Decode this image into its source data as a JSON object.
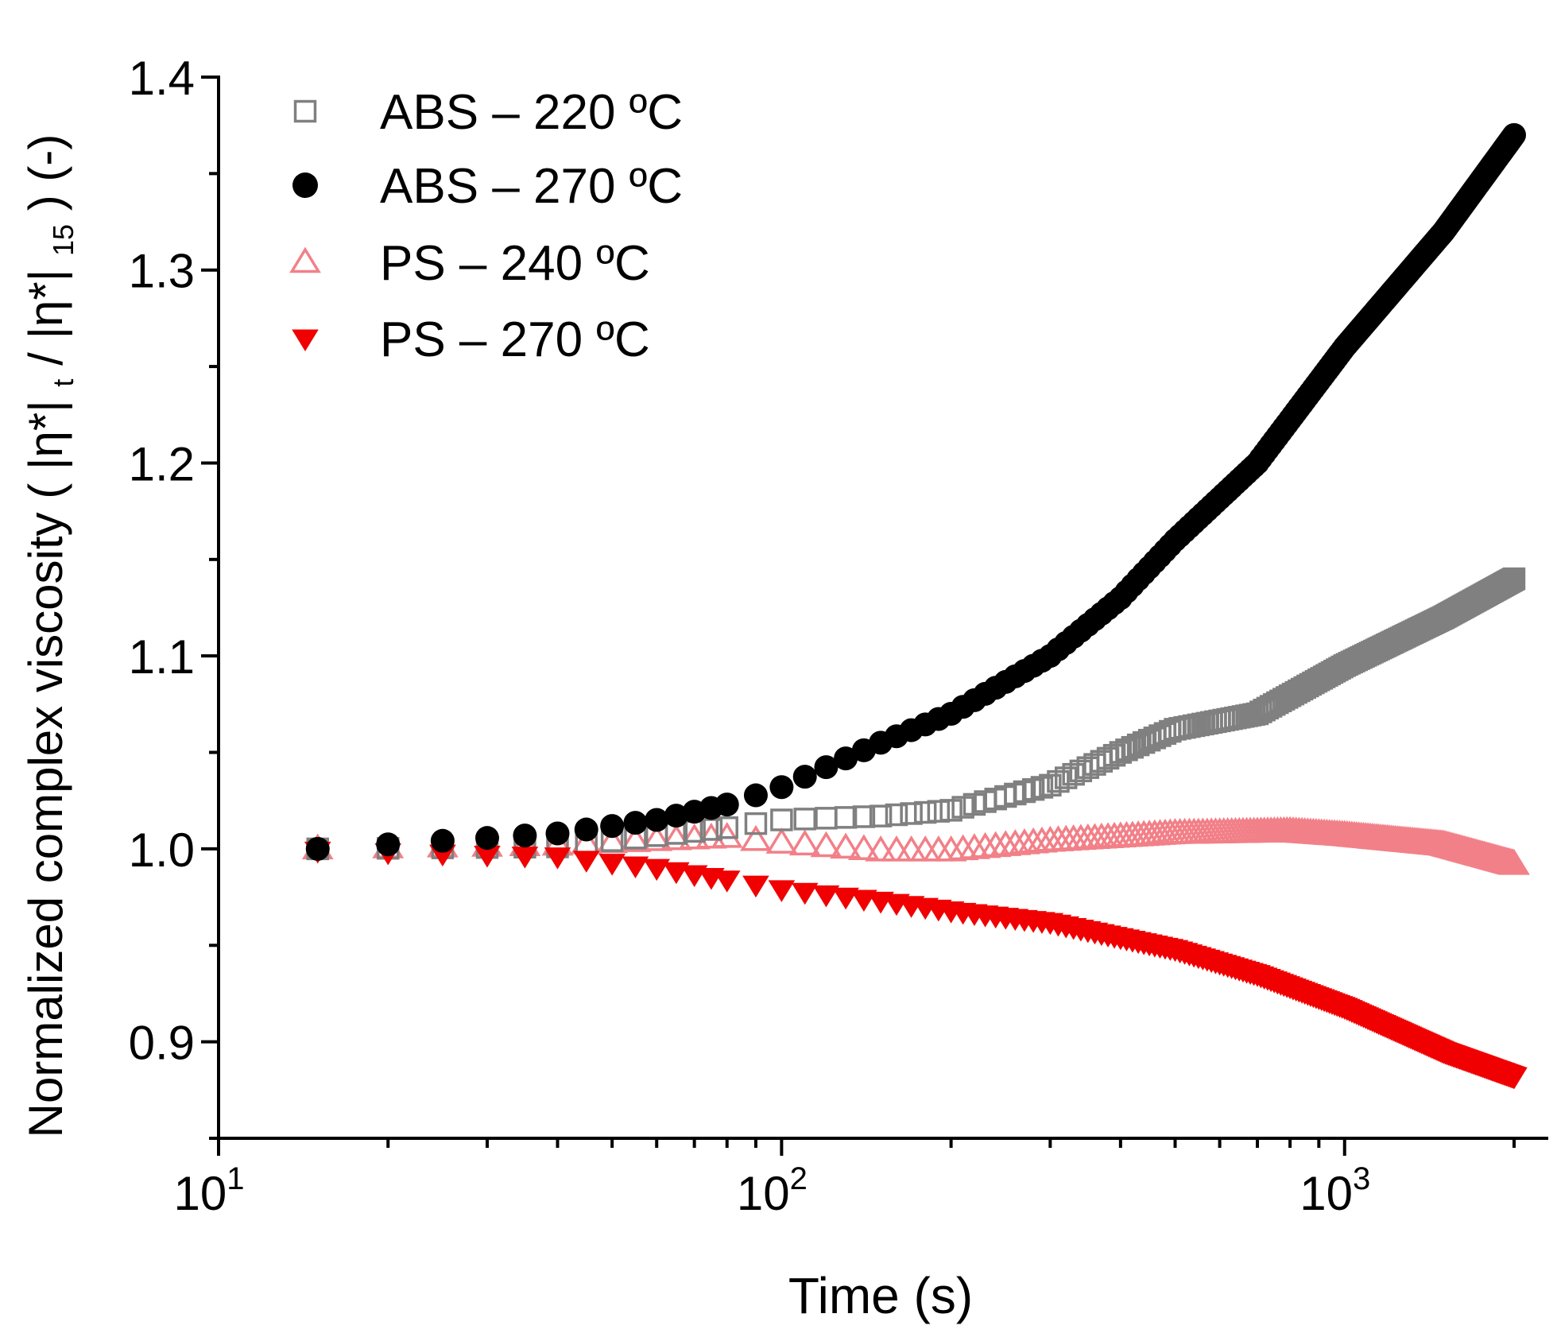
{
  "chart_data": {
    "type": "scatter",
    "xscale": "log",
    "xlim": [
      10,
      2300
    ],
    "ylim": [
      0.85,
      1.4
    ],
    "xlabel": "Time (s)",
    "ylabel": {
      "main": "Normalized complex viscosity (",
      "eta": "|η*|",
      "sub_t": "t",
      "slash": "/",
      "sub_15": "15",
      "tail": ") (-)"
    },
    "x_ticks": [
      {
        "value": 10,
        "base": "10",
        "exp": "1"
      },
      {
        "value": 100,
        "base": "10",
        "exp": "2"
      },
      {
        "value": 1000,
        "base": "10",
        "exp": "3"
      }
    ],
    "y_ticks": [
      {
        "value": 0.9,
        "label": "0.9"
      },
      {
        "value": 1.0,
        "label": "1.0"
      },
      {
        "value": 1.1,
        "label": "1.1"
      },
      {
        "value": 1.2,
        "label": "1.2"
      },
      {
        "value": 1.3,
        "label": "1.3"
      },
      {
        "value": 1.4,
        "label": "1.4"
      }
    ],
    "legend_position": "top-left",
    "series": [
      {
        "name": "ABS – 220 ºC",
        "marker": "square-open",
        "color": "#808080",
        "anchors": [
          [
            15,
            1.0
          ],
          [
            40,
            1.001
          ],
          [
            80,
            1.011
          ],
          [
            100,
            1.015
          ],
          [
            150,
            1.017
          ],
          [
            200,
            1.02
          ],
          [
            300,
            1.033
          ],
          [
            400,
            1.05
          ],
          [
            500,
            1.062
          ],
          [
            700,
            1.07
          ],
          [
            1000,
            1.095
          ],
          [
            1500,
            1.12
          ],
          [
            2000,
            1.14
          ]
        ]
      },
      {
        "name": "ABS – 270 ºC",
        "marker": "circle-filled",
        "color": "#000000",
        "anchors": [
          [
            15,
            1.0
          ],
          [
            40,
            1.008
          ],
          [
            60,
            1.015
          ],
          [
            80,
            1.023
          ],
          [
            100,
            1.032
          ],
          [
            150,
            1.055
          ],
          [
            200,
            1.07
          ],
          [
            300,
            1.1
          ],
          [
            400,
            1.13
          ],
          [
            500,
            1.16
          ],
          [
            700,
            1.2
          ],
          [
            1000,
            1.26
          ],
          [
            1500,
            1.32
          ],
          [
            2000,
            1.37
          ]
        ]
      },
      {
        "name": "PS – 240 ºC",
        "marker": "triangle-up-open",
        "color": "#f28088",
        "anchors": [
          [
            15,
            1.0
          ],
          [
            40,
            1.002
          ],
          [
            80,
            1.006
          ],
          [
            100,
            1.003
          ],
          [
            150,
            0.999
          ],
          [
            200,
            0.999
          ],
          [
            300,
            1.004
          ],
          [
            500,
            1.008
          ],
          [
            800,
            1.009
          ],
          [
            1000,
            1.007
          ],
          [
            1500,
            1.002
          ],
          [
            2000,
            0.992
          ]
        ]
      },
      {
        "name": "PS – 270 ºC",
        "marker": "triangle-down-filled",
        "color": "#f00000",
        "anchors": [
          [
            15,
            0.999
          ],
          [
            40,
            0.996
          ],
          [
            60,
            0.99
          ],
          [
            80,
            0.984
          ],
          [
            100,
            0.979
          ],
          [
            150,
            0.973
          ],
          [
            200,
            0.968
          ],
          [
            300,
            0.962
          ],
          [
            500,
            0.948
          ],
          [
            700,
            0.935
          ],
          [
            1000,
            0.918
          ],
          [
            1500,
            0.895
          ],
          [
            2000,
            0.882
          ]
        ]
      }
    ]
  }
}
